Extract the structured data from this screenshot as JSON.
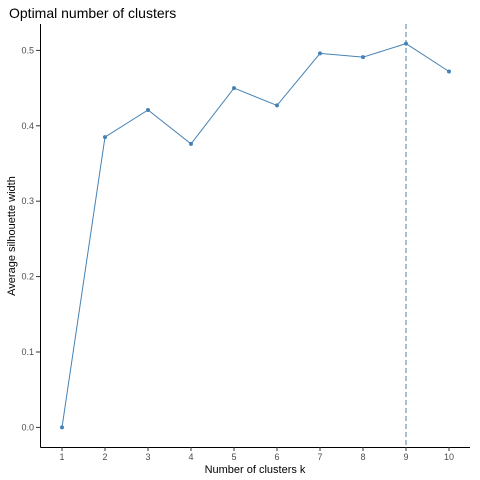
{
  "chart_data": {
    "type": "line",
    "title": "Optimal number of clusters",
    "xlabel": "Number of clusters k",
    "ylabel": "Average silhouette width",
    "categories": [
      "1",
      "2",
      "3",
      "4",
      "5",
      "6",
      "7",
      "8",
      "9",
      "10"
    ],
    "series": [
      {
        "values": [
          0.0,
          0.385,
          0.421,
          0.376,
          0.45,
          0.427,
          0.496,
          0.491,
          0.509,
          0.472
        ]
      }
    ],
    "ylim": [
      -0.026,
      0.535
    ],
    "y_ticks": [
      0.0,
      0.1,
      0.2,
      0.3,
      0.4,
      0.5
    ],
    "y_tick_labels": [
      "0.0",
      "0.1",
      "0.2",
      "0.3",
      "0.4",
      "0.5"
    ],
    "optimal_k": "9",
    "line_color": "#4682B4",
    "grid": false,
    "legend": "none"
  }
}
